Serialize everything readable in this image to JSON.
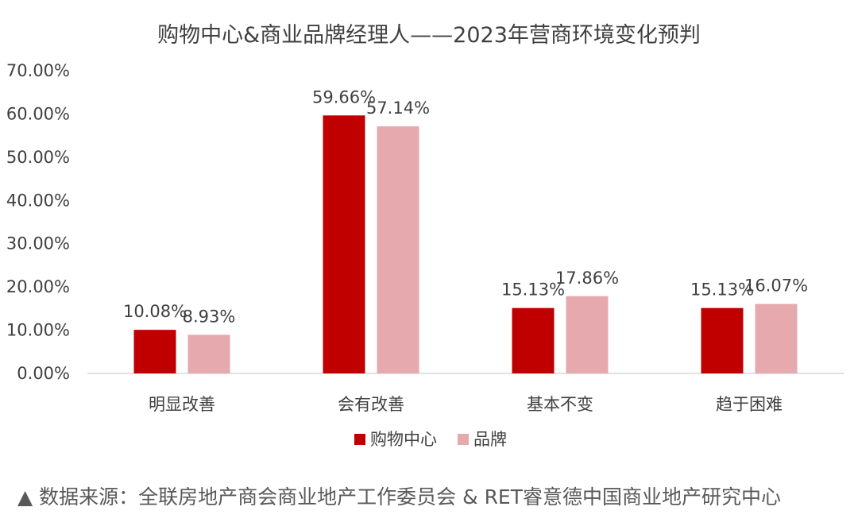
{
  "chart_data": {
    "type": "bar",
    "title": "购物中心&商业品牌经理人——2023年营商环境变化预判",
    "categories": [
      "明显改善",
      "会有改善",
      "基本不变",
      "趋于困难"
    ],
    "series": [
      {
        "name": "购物中心",
        "values": [
          10.08,
          59.66,
          15.13,
          15.13
        ],
        "labels": [
          "10.08%",
          "59.66%",
          "15.13%",
          "15.13%"
        ],
        "color": "#C00000"
      },
      {
        "name": "品牌",
        "values": [
          8.93,
          57.14,
          17.86,
          16.07
        ],
        "labels": [
          "8.93%",
          "57.14%",
          "17.86%",
          "16.07%"
        ],
        "color": "#E6A9AE"
      }
    ],
    "ylim": [
      0,
      70
    ],
    "yticks": [
      "0.00%",
      "10.00%",
      "20.00%",
      "30.00%",
      "40.00%",
      "50.00%",
      "60.00%",
      "70.00%"
    ],
    "xlabel": "",
    "ylabel": "",
    "grid": false,
    "legend_position": "bottom"
  },
  "source": "▲ 数据来源：全联房地产商会商业地产工作委员会 & RET睿意德中国商业地产研究中心"
}
